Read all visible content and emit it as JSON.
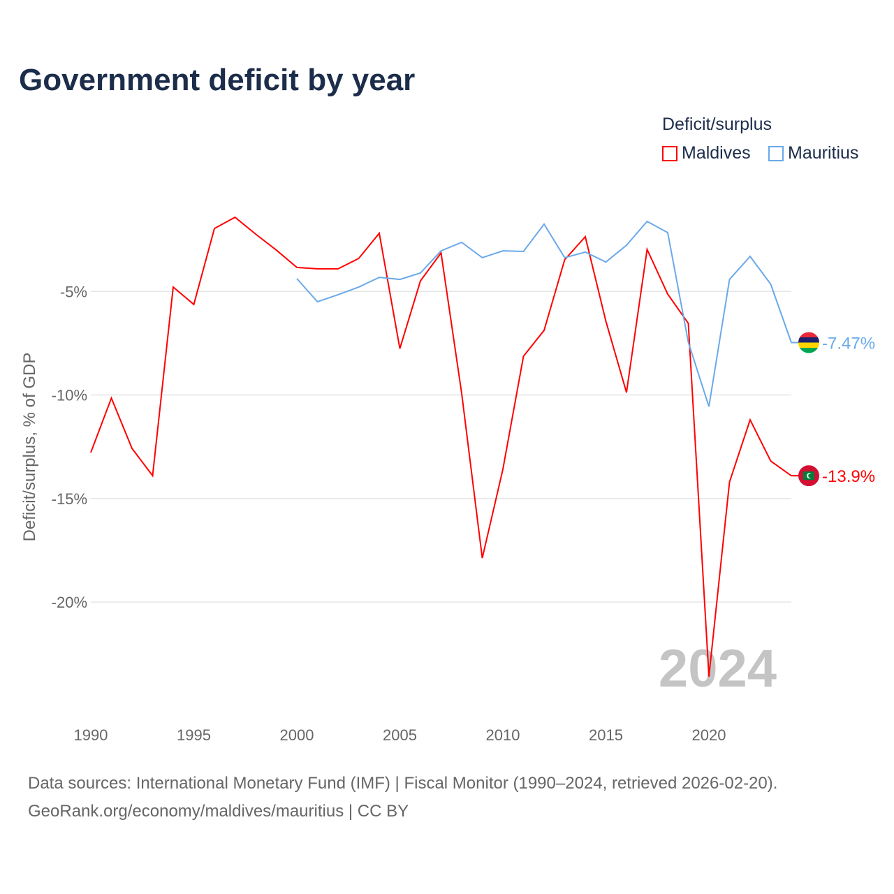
{
  "chart_data": {
    "type": "line",
    "title": "Government deficit by year",
    "ylabel": "Deficit/surplus, % of GDP",
    "xlabel": "",
    "legend_title": "Deficit/surplus",
    "legend_placement": "top-right",
    "ylim": [
      -24.5,
      0
    ],
    "xlim": [
      1990,
      2024
    ],
    "yticks": [
      -5,
      -10,
      -15,
      -20
    ],
    "ytick_labels": [
      "-5%",
      "-10%",
      "-15%",
      "-20%"
    ],
    "xticks": [
      1990,
      1995,
      2000,
      2005,
      2010,
      2015,
      2020
    ],
    "xtick_labels": [
      "1990",
      "1995",
      "2000",
      "2005",
      "2010",
      "2015",
      "2020"
    ],
    "grid": true,
    "year_watermark": "2024",
    "series": [
      {
        "name": "Maldives",
        "color": "#ff0000",
        "end_label": "-13.9%",
        "x": [
          1990,
          1991,
          1992,
          1993,
          1994,
          1995,
          1996,
          1997,
          1998,
          1999,
          2000,
          2001,
          2002,
          2003,
          2004,
          2005,
          2006,
          2007,
          2008,
          2009,
          2010,
          2011,
          2012,
          2013,
          2014,
          2015,
          2016,
          2017,
          2018,
          2019,
          2020,
          2021,
          2022,
          2023,
          2024
        ],
        "values": [
          -12.78,
          -10.15,
          -12.58,
          -13.9,
          -4.79,
          -5.63,
          -1.96,
          -1.42,
          -2.23,
          -3.0,
          -3.84,
          -3.91,
          -3.91,
          -3.41,
          -2.19,
          -7.76,
          -4.49,
          -3.14,
          -9.92,
          -17.88,
          -13.59,
          -8.13,
          -6.88,
          -3.47,
          -2.36,
          -6.44,
          -9.88,
          -2.97,
          -5.13,
          -6.54,
          -23.6,
          -14.2,
          -11.2,
          -13.19,
          -13.9
        ]
      },
      {
        "name": "Mauritius",
        "color": "#6aa9e9",
        "end_label": "-7.47%",
        "x": [
          2000,
          2001,
          2002,
          2003,
          2004,
          2005,
          2006,
          2007,
          2008,
          2009,
          2010,
          2011,
          2012,
          2013,
          2014,
          2015,
          2016,
          2017,
          2018,
          2019,
          2020,
          2021,
          2022,
          2023,
          2024
        ],
        "values": [
          -4.38,
          -5.5,
          -5.16,
          -4.79,
          -4.32,
          -4.42,
          -4.11,
          -3.04,
          -2.63,
          -3.37,
          -3.04,
          -3.07,
          -1.75,
          -3.37,
          -3.1,
          -3.58,
          -2.77,
          -1.62,
          -2.16,
          -7.45,
          -10.56,
          -4.42,
          -3.31,
          -4.65,
          -7.47
        ]
      }
    ]
  },
  "footer": {
    "source_line": "Data sources: International Monetary Fund (IMF) | Fiscal Monitor (1990–2024, retrieved 2026-02-20).",
    "credit_line": "GeoRank.org/economy/maldives/mauritius | CC BY"
  }
}
